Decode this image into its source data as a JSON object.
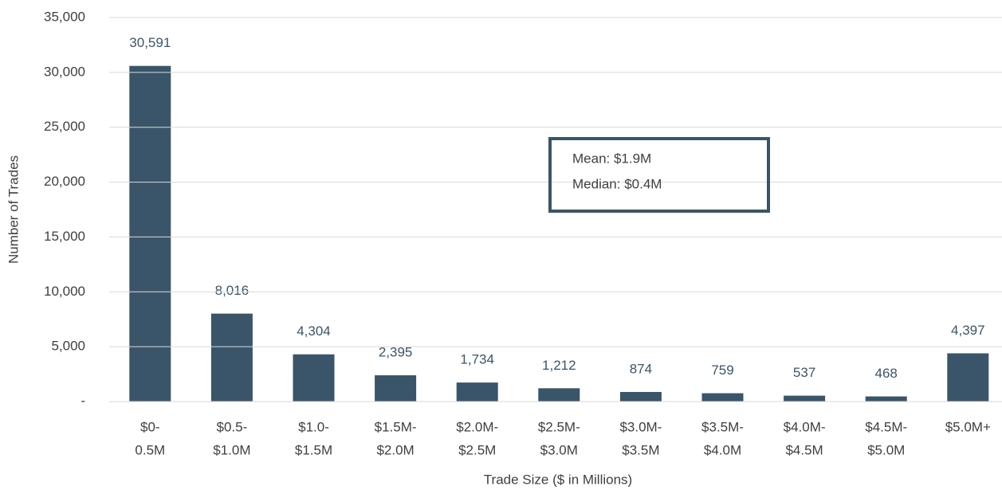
{
  "chart_data": {
    "type": "bar",
    "xlabel": "Trade Size ($ in Millions)",
    "ylabel": "Number of Trades",
    "categories": [
      [
        "$0-",
        "0.5M"
      ],
      [
        "$0.5-",
        "$1.0M"
      ],
      [
        "$1.0-",
        "$1.5M"
      ],
      [
        "$1.5M-",
        "$2.0M"
      ],
      [
        "$2.0M-",
        "$2.5M"
      ],
      [
        "$2.5M-",
        "$3.0M"
      ],
      [
        "$3.0M-",
        "$3.5M"
      ],
      [
        "$3.5M-",
        "$4.0M"
      ],
      [
        "$4.0M-",
        "$4.5M"
      ],
      [
        "$4.5M-",
        "$5.0M"
      ],
      [
        "$5.0M+"
      ]
    ],
    "values": [
      30591,
      8016,
      4304,
      2395,
      1734,
      1212,
      874,
      759,
      537,
      468,
      4397
    ],
    "value_labels": [
      "30,591",
      "8,016",
      "4,304",
      "2,395",
      "1,734",
      "1,212",
      "874",
      "759",
      "537",
      "468",
      "4,397"
    ],
    "color": "#3a5569",
    "ylim": [
      0,
      35000
    ],
    "yticks": [
      {
        "value": 0,
        "label": "-"
      },
      {
        "value": 5000,
        "label": "5,000"
      },
      {
        "value": 10000,
        "label": "10,000"
      },
      {
        "value": 15000,
        "label": "15,000"
      },
      {
        "value": 20000,
        "label": "20,000"
      },
      {
        "value": 25000,
        "label": "25,000"
      },
      {
        "value": 30000,
        "label": "30,000"
      },
      {
        "value": 35000,
        "label": "35,000"
      }
    ],
    "grid": true,
    "annotations": [
      "Mean: $1.9M",
      "Median: $0.4M"
    ]
  }
}
